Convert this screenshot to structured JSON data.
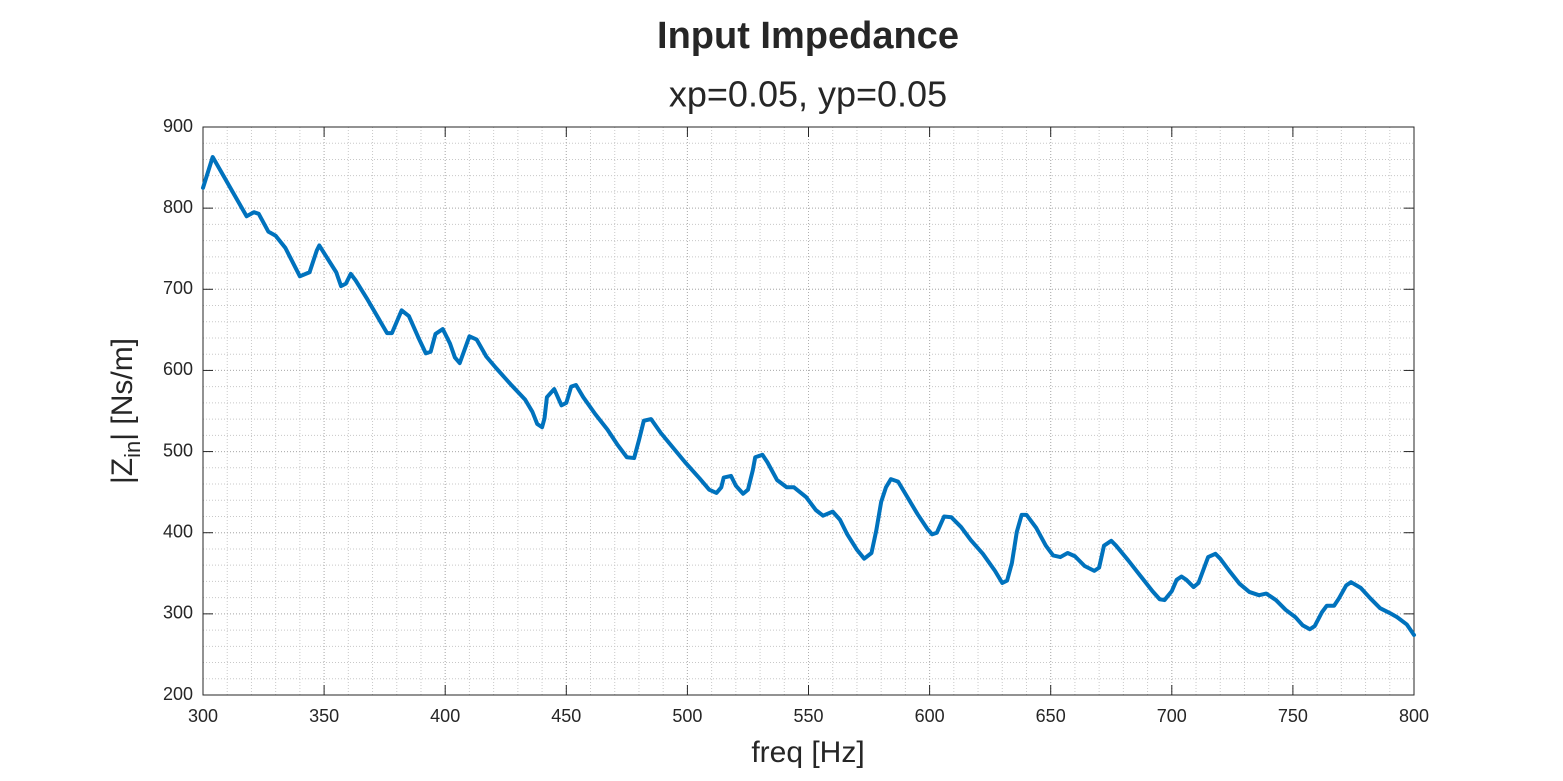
{
  "chart_data": {
    "type": "line",
    "title": "Input Impedance",
    "subtitle": "xp=0.05, yp=0.05",
    "xlabel": "freq [Hz]",
    "ylabel": [
      "|Z",
      "in",
      "| [Ns/m]"
    ],
    "x": [
      300,
      304,
      309,
      313,
      318,
      321,
      323,
      327,
      330,
      334,
      340,
      344,
      347,
      348,
      355,
      357,
      359,
      361,
      363,
      368,
      376,
      378,
      382,
      385,
      389,
      392,
      394,
      396,
      399,
      402,
      404,
      406,
      410,
      413,
      417,
      421,
      427,
      433,
      436,
      438,
      440,
      441,
      442,
      445,
      448,
      450,
      452,
      454,
      457,
      462,
      467,
      471,
      475,
      478,
      480,
      482,
      485,
      489,
      494,
      499,
      505,
      509,
      512,
      514,
      515,
      518,
      520,
      523,
      525,
      527,
      528,
      531,
      533,
      537,
      541,
      544,
      549,
      553,
      556,
      560,
      563,
      566,
      570,
      573,
      576,
      578,
      580,
      582,
      584,
      587,
      590,
      595,
      599,
      601,
      603,
      606,
      609,
      613,
      617,
      622,
      627,
      630,
      632,
      634,
      636,
      638,
      640,
      644,
      648,
      651,
      654,
      657,
      660,
      664,
      668,
      670,
      672,
      675,
      677,
      682,
      687,
      692,
      695,
      697,
      700,
      702,
      704,
      706,
      709,
      711,
      713,
      715,
      718,
      720,
      724,
      728,
      732,
      736,
      739,
      743,
      747,
      751,
      754,
      757,
      759,
      762,
      764,
      767,
      769,
      772,
      774,
      778,
      782,
      786,
      790,
      793,
      797,
      800
    ],
    "series": [
      {
        "color": "#0072BD",
        "values": [
          825,
          863,
          837,
          816,
          790,
          795,
          793,
          771,
          766,
          751,
          716,
          721,
          748,
          754,
          721,
          704,
          707,
          719,
          711,
          687,
          646,
          646,
          674,
          667,
          640,
          621,
          623,
          645,
          651,
          633,
          616,
          609,
          642,
          638,
          617,
          603,
          583,
          564,
          549,
          534,
          530,
          541,
          567,
          577,
          557,
          560,
          580,
          582,
          567,
          546,
          527,
          509,
          493,
          492,
          514,
          538,
          540,
          523,
          505,
          487,
          467,
          453,
          449,
          456,
          468,
          470,
          458,
          448,
          453,
          477,
          493,
          496,
          487,
          465,
          456,
          456,
          444,
          428,
          421,
          426,
          416,
          398,
          379,
          368,
          375,
          403,
          438,
          456,
          466,
          463,
          448,
          423,
          405,
          398,
          400,
          420,
          419,
          407,
          391,
          374,
          353,
          338,
          341,
          363,
          401,
          422,
          422,
          406,
          384,
          372,
          370,
          375,
          371,
          359,
          353,
          357,
          384,
          390,
          384,
          366,
          347,
          328,
          318,
          317,
          328,
          342,
          346,
          342,
          333,
          338,
          354,
          370,
          374,
          368,
          352,
          337,
          327,
          323,
          325,
          317,
          305,
          296,
          286,
          281,
          285,
          302,
          310,
          310,
          319,
          335,
          339,
          332,
          319,
          307,
          301,
          296,
          287,
          274
        ]
      }
    ],
    "xlim": [
      300,
      800
    ],
    "ylim": [
      200,
      900
    ],
    "xticks": [
      300,
      350,
      400,
      450,
      500,
      550,
      600,
      650,
      700,
      750,
      800
    ],
    "yticks": [
      200,
      300,
      400,
      500,
      600,
      700,
      800,
      900
    ],
    "grid": true,
    "minor_grid": true
  }
}
